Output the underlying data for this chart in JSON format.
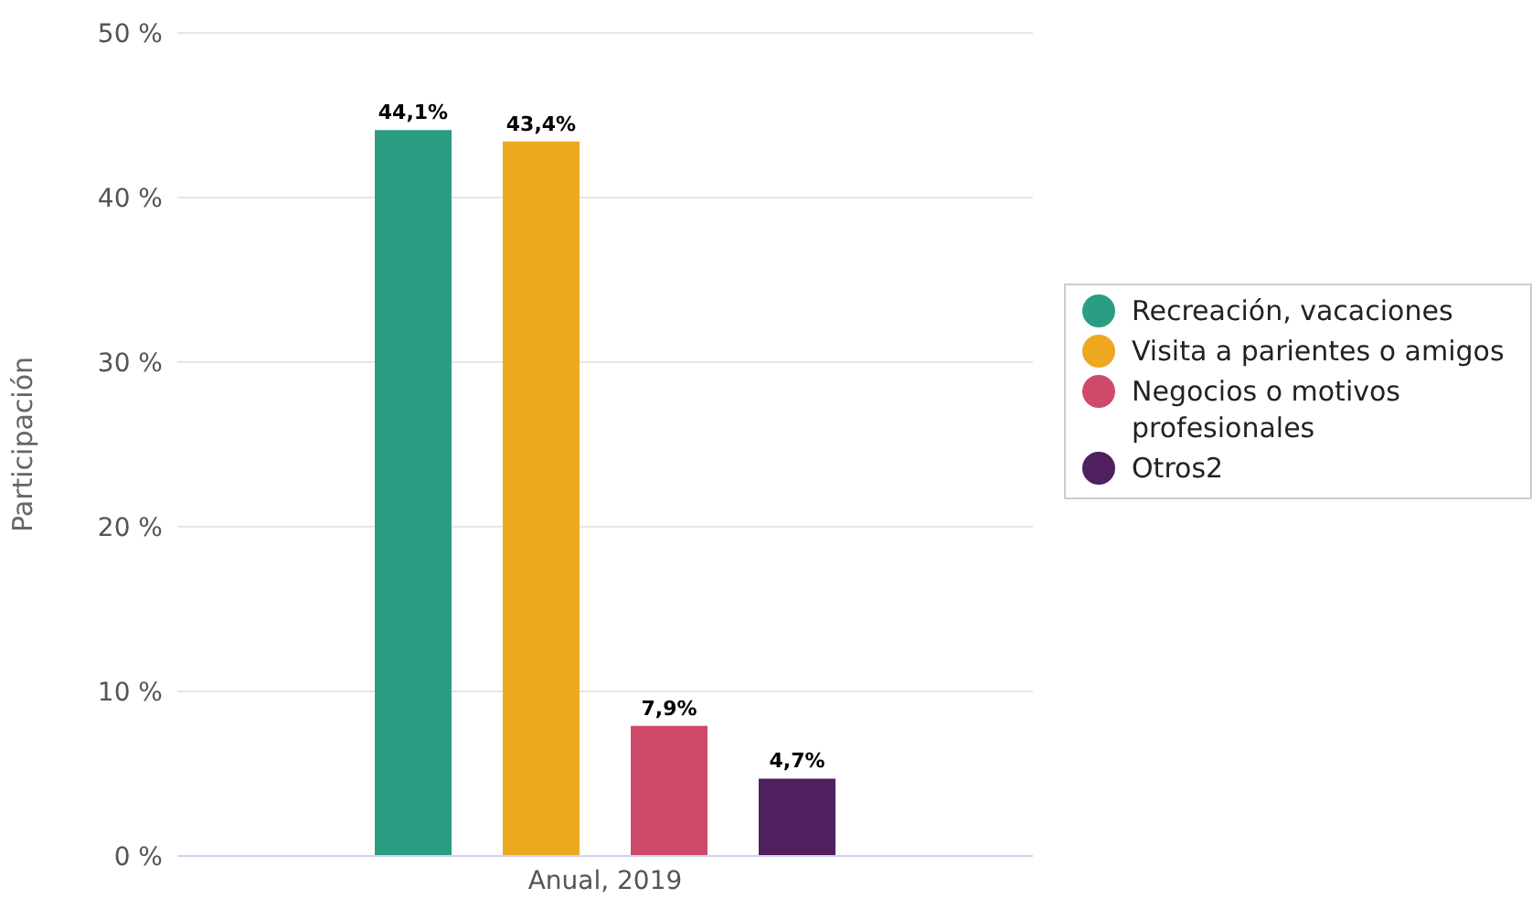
{
  "chart_data": {
    "type": "bar",
    "categories": [
      "Anual, 2019"
    ],
    "ylabel": "Participación",
    "series": [
      {
        "name": "Recreación, vacaciones",
        "color": "#2a9d82",
        "values": [
          44.1
        ],
        "value_labels": [
          "44,1%"
        ]
      },
      {
        "name": "Visita a parientes o amigos",
        "color": "#eea820",
        "values": [
          43.4
        ],
        "value_labels": [
          "43,4%"
        ]
      },
      {
        "name": "Negocios o motivos profesionales",
        "color": "#cf4a6a",
        "values": [
          7.9
        ],
        "value_labels": [
          "7,9%"
        ]
      },
      {
        "name": "Otros2",
        "color": "#4f1f5e",
        "values": [
          4.7
        ],
        "value_labels": [
          "4,7%"
        ]
      }
    ],
    "ylim": [
      0,
      50
    ],
    "yticks": [
      {
        "value": 0,
        "label": "0 %"
      },
      {
        "value": 10,
        "label": "10 %"
      },
      {
        "value": 20,
        "label": "20 %"
      },
      {
        "value": 30,
        "label": "30 %"
      },
      {
        "value": 40,
        "label": "40 %"
      },
      {
        "value": 50,
        "label": "50 %"
      }
    ],
    "grid": "y",
    "legend": "right"
  }
}
